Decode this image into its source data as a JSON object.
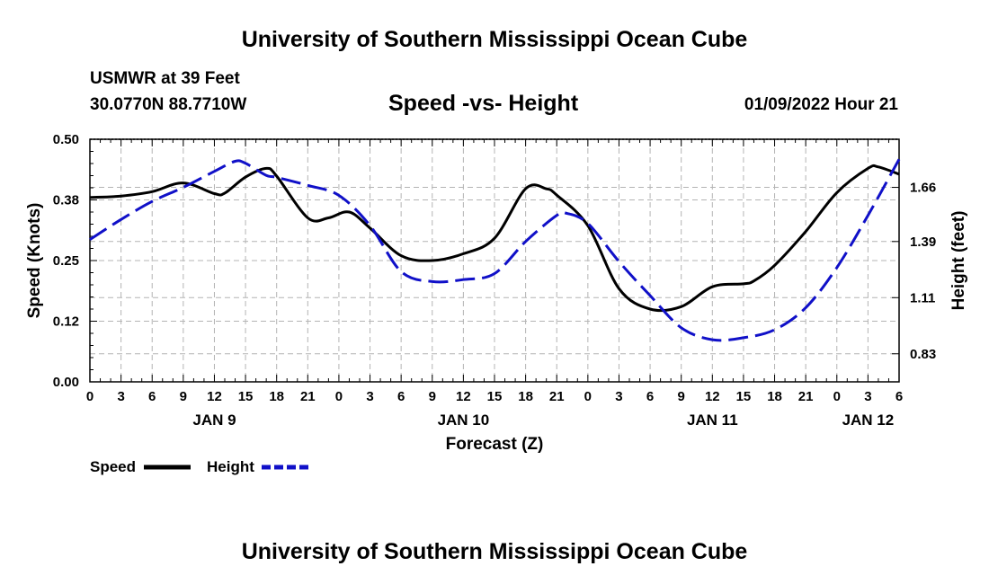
{
  "header": {
    "title": "University of Southern Mississippi Ocean Cube",
    "station": "USMWR at 39 Feet",
    "coords": "30.0770N  88.7710W",
    "datetime": "01/09/2022 Hour 21"
  },
  "footer": {
    "title": "University of Southern Mississippi Ocean Cube"
  },
  "chart_data": {
    "type": "line",
    "title": "Speed -vs- Height",
    "xlabel": "Forecast (Z)",
    "ylabel": "Speed (Knots)",
    "y2label": "Height (feet)",
    "xlim": [
      0,
      78
    ],
    "ylim": [
      0,
      0.5
    ],
    "y2lim": [
      0.69,
      1.9
    ],
    "x_tick_labels": [
      "0",
      "3",
      "6",
      "9",
      "12",
      "15",
      "18",
      "21",
      "0",
      "3",
      "6",
      "9",
      "12",
      "15",
      "18",
      "21",
      "0",
      "3",
      "6",
      "9",
      "12",
      "15",
      "18",
      "21",
      "0",
      "3",
      "6"
    ],
    "y_tick_values": [
      0.0,
      0.125,
      0.25,
      0.375,
      0.5
    ],
    "y_tick_labels": [
      "0.00",
      "0.12",
      "0.25",
      "0.38",
      "0.50"
    ],
    "y2_tick_values": [
      0.83,
      1.11,
      1.39,
      1.66
    ],
    "y2_tick_labels": [
      "0.83",
      "1.11",
      "1.39",
      "1.66"
    ],
    "day_labels": [
      {
        "label": "JAN 9",
        "x": 12
      },
      {
        "label": "JAN 10",
        "x": 36
      },
      {
        "label": "JAN 11",
        "x": 60
      },
      {
        "label": "JAN 12",
        "x": 75
      }
    ],
    "grid": true,
    "legend": [
      "Speed",
      "Height"
    ],
    "series": [
      {
        "name": "Speed",
        "axis": "left",
        "color": "#000000",
        "style": "solid",
        "x": [
          0,
          3,
          6,
          9,
          12,
          13,
          15,
          17,
          18,
          21,
          23,
          25,
          27,
          30,
          33,
          36,
          39,
          42,
          44,
          45,
          48,
          51,
          54,
          57,
          60,
          63,
          64,
          66,
          69,
          72,
          75,
          76,
          78
        ],
        "values": [
          0.38,
          0.383,
          0.392,
          0.41,
          0.388,
          0.389,
          0.422,
          0.44,
          0.424,
          0.338,
          0.338,
          0.35,
          0.317,
          0.26,
          0.25,
          0.264,
          0.296,
          0.398,
          0.398,
          0.385,
          0.322,
          0.192,
          0.15,
          0.155,
          0.196,
          0.202,
          0.208,
          0.24,
          0.31,
          0.39,
          0.44,
          0.443,
          0.428
        ]
      },
      {
        "name": "Height",
        "axis": "right",
        "color": "#1010c8",
        "style": "dashed",
        "x": [
          0,
          3,
          6,
          9,
          12,
          14,
          15,
          17,
          18,
          21,
          24,
          27,
          30,
          33,
          36,
          39,
          42,
          45,
          46,
          48,
          51,
          54,
          57,
          60,
          63,
          66,
          69,
          72,
          75,
          78
        ],
        "values": [
          1.4,
          1.5,
          1.59,
          1.66,
          1.74,
          1.79,
          1.78,
          1.72,
          1.71,
          1.67,
          1.62,
          1.47,
          1.24,
          1.19,
          1.2,
          1.23,
          1.39,
          1.52,
          1.53,
          1.48,
          1.29,
          1.12,
          0.96,
          0.9,
          0.91,
          0.95,
          1.06,
          1.26,
          1.52,
          1.8
        ]
      }
    ]
  }
}
